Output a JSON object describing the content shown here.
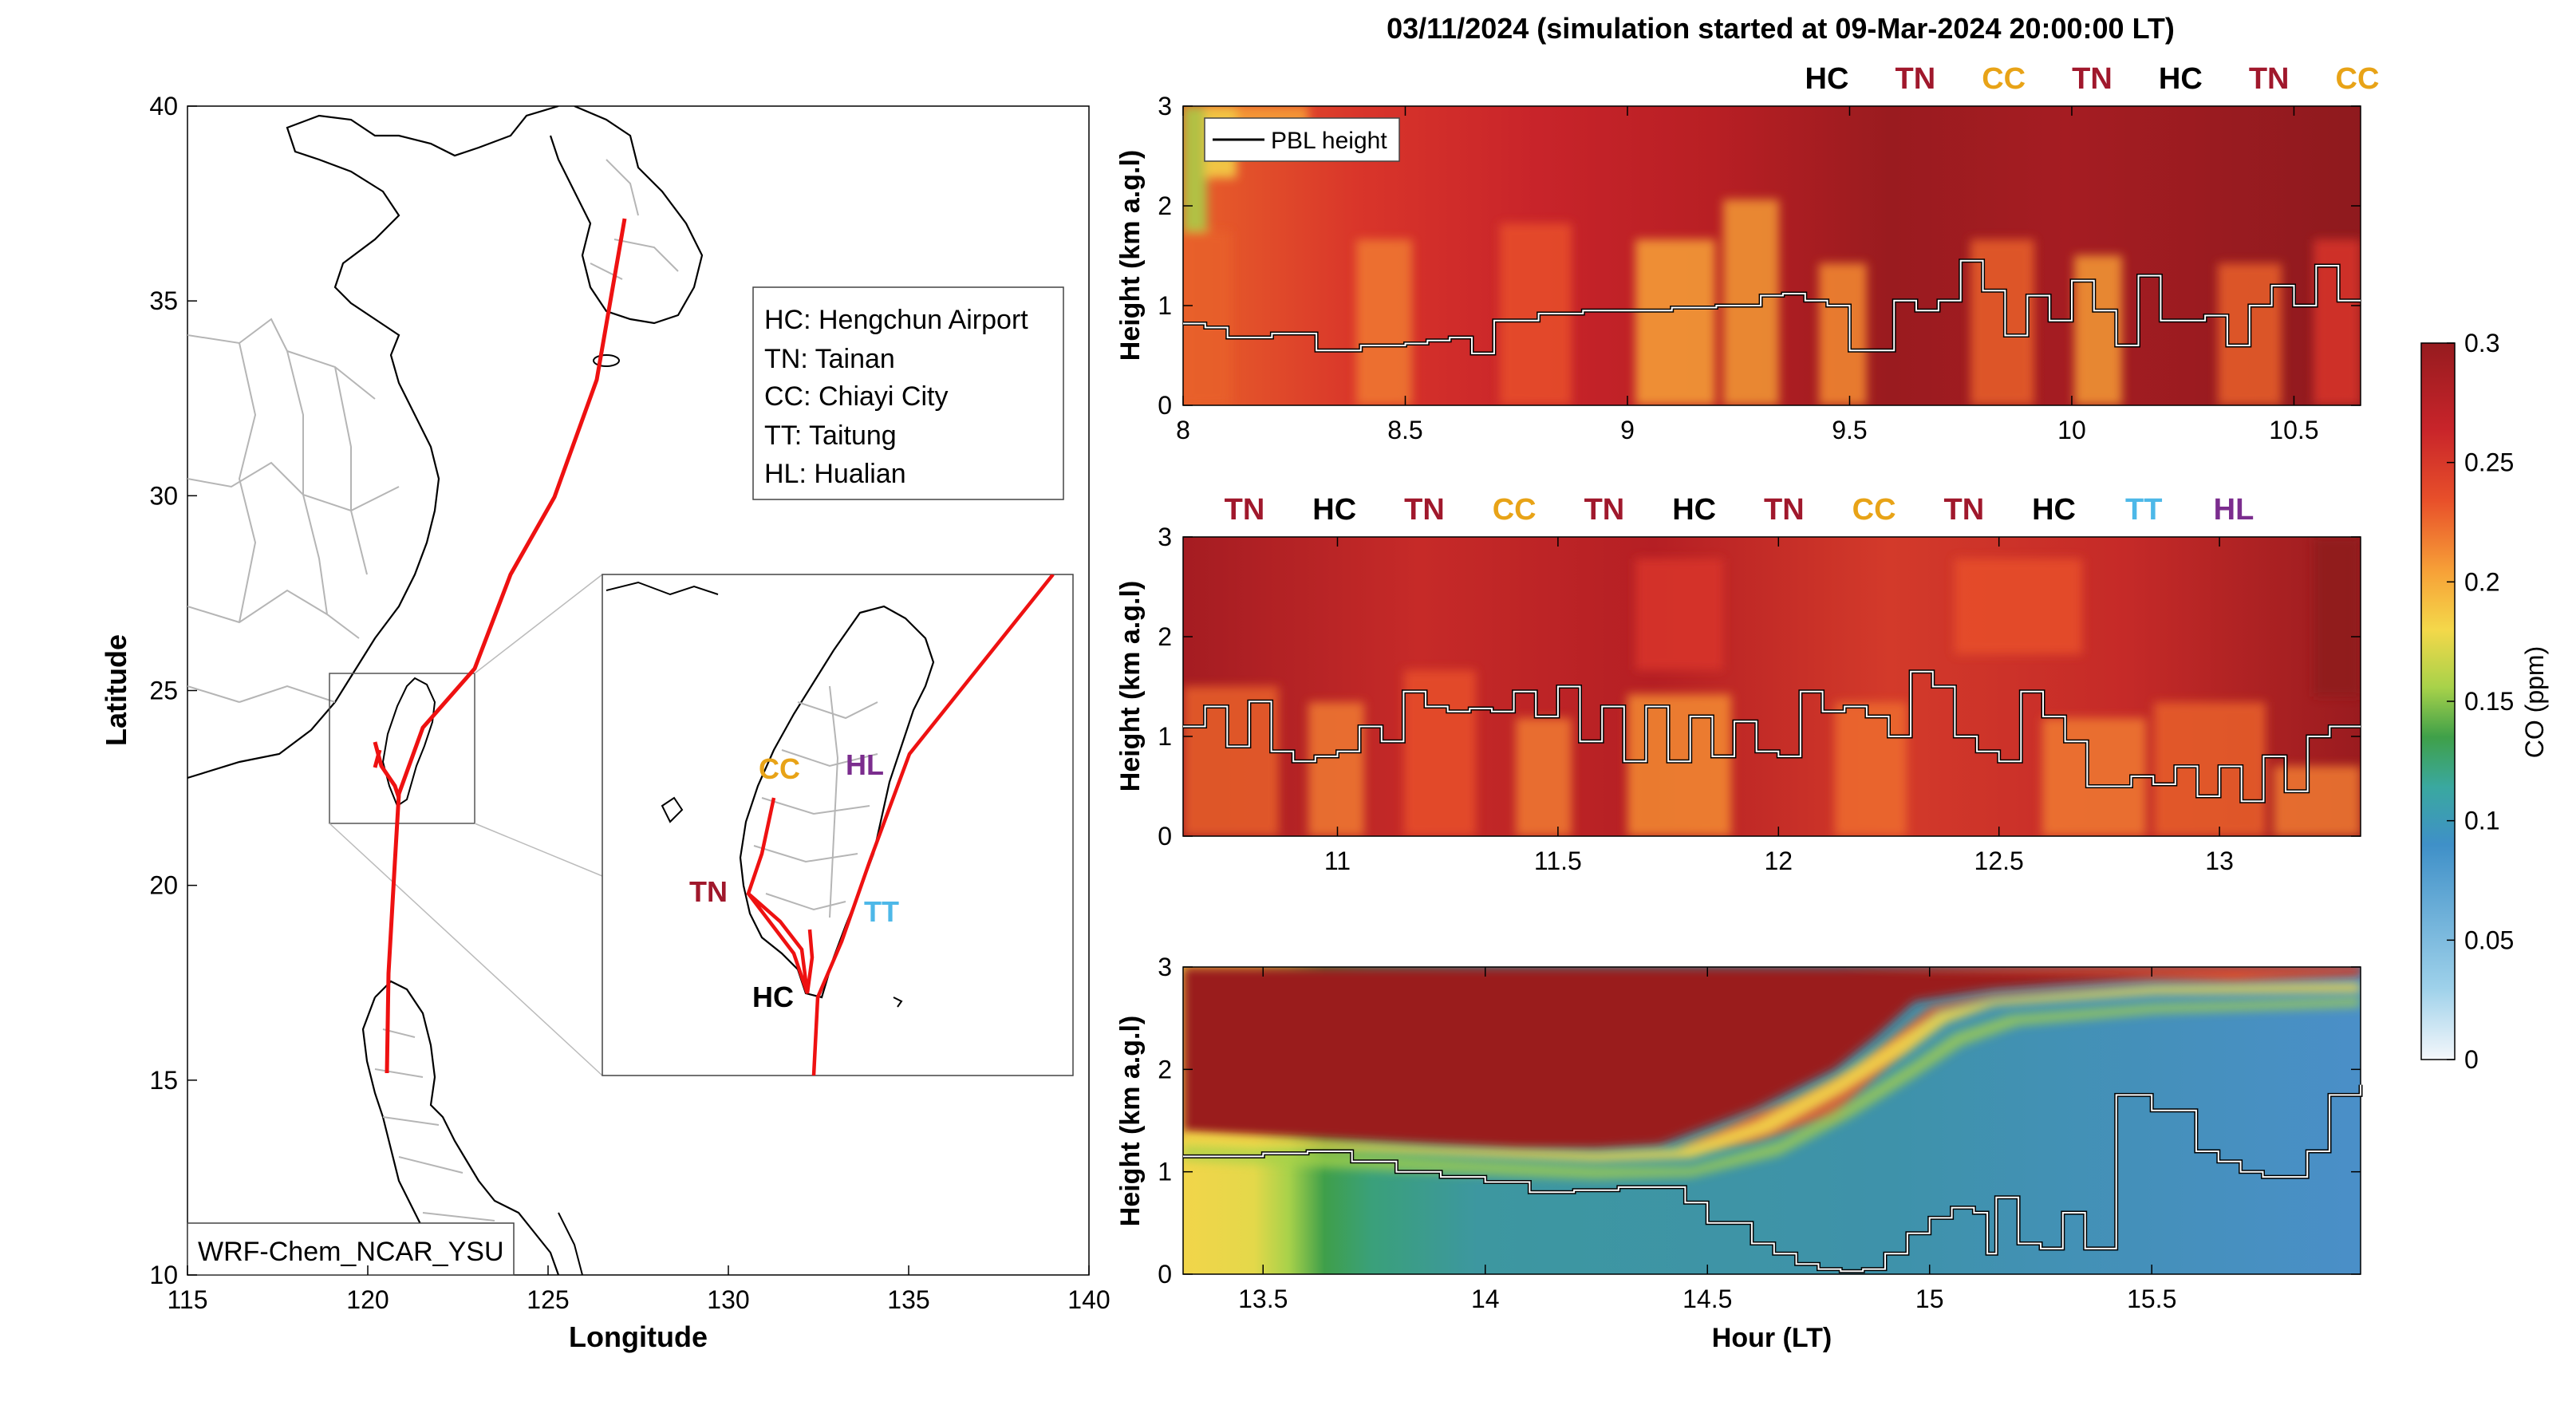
{
  "figure_title": "03/11/2024 (simulation started at 09-Mar-2024 20:00:00 LT)",
  "map": {
    "xlabel": "Longitude",
    "ylabel": "Latitude",
    "xlim": [
      115,
      140
    ],
    "ylim": [
      10,
      40
    ],
    "xticks": [
      "115",
      "120",
      "125",
      "130",
      "135",
      "140"
    ],
    "yticks": [
      "10",
      "15",
      "20",
      "25",
      "30",
      "35",
      "40"
    ],
    "model_label": "WRF-Chem_NCAR_YSU",
    "legend": [
      "HC: Hengchun Airport",
      "TN: Tainan",
      "CC: Chiayi City",
      "TT: Taitung",
      "HL: Hualian"
    ],
    "track_color": "#ee1111",
    "inset_labels": [
      {
        "code": "CC",
        "color": "#e8a317"
      },
      {
        "code": "HL",
        "color": "#7b2d8e"
      },
      {
        "code": "TN",
        "color": "#a0182c"
      },
      {
        "code": "TT",
        "color": "#4db8e8"
      },
      {
        "code": "HC",
        "color": "#000000"
      }
    ]
  },
  "station_colors": {
    "HC": "#000000",
    "TN": "#a0182c",
    "CC": "#e8a317",
    "TT": "#4db8e8",
    "HL": "#7b2d8e"
  },
  "chart_data": [
    {
      "type": "heatmap",
      "panel": 1,
      "ylabel": "Height (km a.g.l)",
      "xlim": [
        8,
        10.65
      ],
      "ylim": [
        0,
        3
      ],
      "xticks": [
        "8",
        "8.5",
        "9",
        "9.5",
        "10",
        "10.5"
      ],
      "yticks": [
        "0",
        "1",
        "2",
        "3"
      ],
      "legend": "PBL height",
      "station_labels": [
        "HC",
        "TN",
        "CC",
        "TN",
        "HC",
        "TN",
        "CC"
      ],
      "pbl_height": {
        "hour": [
          8.0,
          8.05,
          8.1,
          8.2,
          8.3,
          8.4,
          8.5,
          8.55,
          8.6,
          8.65,
          8.7,
          8.8,
          8.9,
          9.0,
          9.1,
          9.2,
          9.3,
          9.35,
          9.4,
          9.45,
          9.5,
          9.55,
          9.6,
          9.65,
          9.7,
          9.75,
          9.8,
          9.85,
          9.9,
          9.95,
          10.0,
          10.05,
          10.1,
          10.15,
          10.2,
          10.3,
          10.35,
          10.4,
          10.45,
          10.5,
          10.55,
          10.6,
          10.65
        ],
        "height_km": [
          0.82,
          0.78,
          0.68,
          0.72,
          0.55,
          0.6,
          0.62,
          0.65,
          0.68,
          0.52,
          0.85,
          0.92,
          0.95,
          0.95,
          0.98,
          1.0,
          1.1,
          1.12,
          1.05,
          1.0,
          0.55,
          0.55,
          1.05,
          0.95,
          1.05,
          1.45,
          1.15,
          0.7,
          1.1,
          0.85,
          1.25,
          0.95,
          0.6,
          1.3,
          0.85,
          0.9,
          0.6,
          1.0,
          1.2,
          1.0,
          1.4,
          1.05,
          1.05
        ]
      }
    },
    {
      "type": "heatmap",
      "panel": 2,
      "ylabel": "Height (km a.g.l)",
      "xlim": [
        10.65,
        13.32
      ],
      "ylim": [
        0,
        3
      ],
      "xticks": [
        "11",
        "11.5",
        "12",
        "12.5",
        "13"
      ],
      "yticks": [
        "0",
        "1",
        "2",
        "3"
      ],
      "station_labels": [
        "TN",
        "HC",
        "TN",
        "CC",
        "TN",
        "HC",
        "TN",
        "CC",
        "TN",
        "HC",
        "TT",
        "HL"
      ],
      "pbl_height": {
        "hour": [
          10.65,
          10.7,
          10.75,
          10.8,
          10.85,
          10.9,
          10.95,
          11.0,
          11.05,
          11.1,
          11.15,
          11.2,
          11.25,
          11.3,
          11.35,
          11.4,
          11.45,
          11.5,
          11.55,
          11.6,
          11.65,
          11.7,
          11.75,
          11.8,
          11.85,
          11.9,
          11.95,
          12.0,
          12.05,
          12.1,
          12.15,
          12.2,
          12.25,
          12.3,
          12.35,
          12.4,
          12.45,
          12.5,
          12.55,
          12.6,
          12.65,
          12.7,
          12.75,
          12.8,
          12.85,
          12.9,
          12.95,
          13.0,
          13.05,
          13.1,
          13.15,
          13.2,
          13.25,
          13.32
        ],
        "height_km": [
          1.1,
          1.3,
          0.9,
          1.35,
          0.85,
          0.75,
          0.8,
          0.85,
          1.1,
          0.95,
          1.45,
          1.3,
          1.25,
          1.28,
          1.25,
          1.45,
          1.2,
          1.5,
          0.95,
          1.3,
          0.75,
          1.3,
          0.75,
          1.2,
          0.8,
          1.15,
          0.85,
          0.8,
          1.45,
          1.25,
          1.3,
          1.2,
          1.0,
          1.65,
          1.5,
          1.0,
          0.85,
          0.75,
          1.45,
          1.2,
          0.95,
          0.5,
          0.5,
          0.6,
          0.52,
          0.7,
          0.4,
          0.7,
          0.35,
          0.8,
          0.45,
          1.0,
          1.1,
          1.1
        ]
      }
    },
    {
      "type": "heatmap",
      "panel": 3,
      "ylabel": "Height (km a.g.l)",
      "xlabel": "Hour (LT)",
      "xlim": [
        13.32,
        15.97
      ],
      "ylim": [
        0,
        3
      ],
      "xticks": [
        "13.5",
        "14",
        "14.5",
        "15",
        "15.5"
      ],
      "yticks": [
        "0",
        "1",
        "2",
        "3"
      ],
      "pbl_height": {
        "hour": [
          13.32,
          13.4,
          13.5,
          13.6,
          13.7,
          13.8,
          13.9,
          14.0,
          14.1,
          14.2,
          14.3,
          14.4,
          14.45,
          14.5,
          14.6,
          14.65,
          14.7,
          14.75,
          14.8,
          14.85,
          14.9,
          14.95,
          15.0,
          15.05,
          15.1,
          15.13,
          15.15,
          15.18,
          15.2,
          15.25,
          15.3,
          15.35,
          15.4,
          15.42,
          15.45,
          15.5,
          15.55,
          15.6,
          15.65,
          15.7,
          15.75,
          15.8,
          15.85,
          15.9,
          15.97
        ],
        "height_km": [
          1.15,
          1.15,
          1.18,
          1.2,
          1.1,
          1.0,
          0.95,
          0.9,
          0.8,
          0.82,
          0.85,
          0.85,
          0.7,
          0.5,
          0.3,
          0.2,
          0.1,
          0.05,
          0.03,
          0.05,
          0.2,
          0.4,
          0.55,
          0.65,
          0.6,
          0.2,
          0.75,
          0.75,
          0.3,
          0.25,
          0.6,
          0.25,
          0.25,
          1.75,
          1.75,
          1.6,
          1.6,
          1.2,
          1.1,
          1.0,
          0.95,
          0.95,
          1.2,
          1.75,
          1.85
        ]
      }
    }
  ],
  "colorbar": {
    "label": "CO (ppm)",
    "ticks": [
      "0",
      "0.05",
      "0.1",
      "0.15",
      "0.2",
      "0.25",
      "0.3"
    ],
    "range": [
      0,
      0.3
    ],
    "colors": [
      "#f4f7fb",
      "#9ed1ea",
      "#3f90c8",
      "#3aa8a0",
      "#3fa049",
      "#a8d24a",
      "#f4d84a",
      "#f7a238",
      "#e8502a",
      "#c8242a",
      "#961b1f"
    ]
  }
}
